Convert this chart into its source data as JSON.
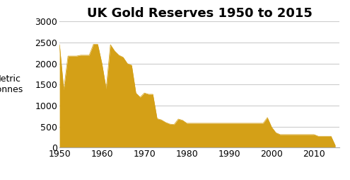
{
  "title": "UK Gold Reserves 1950 to 2015",
  "ylabel": "Metric\nTonnes",
  "fill_color": "#D4A017",
  "background_color": "#ffffff",
  "years": [
    1950,
    1951,
    1952,
    1953,
    1954,
    1955,
    1956,
    1957,
    1958,
    1959,
    1960,
    1961,
    1962,
    1963,
    1964,
    1965,
    1966,
    1967,
    1968,
    1969,
    1970,
    1971,
    1972,
    1973,
    1974,
    1975,
    1976,
    1977,
    1978,
    1979,
    1980,
    1981,
    1982,
    1983,
    1984,
    1985,
    1986,
    1987,
    1988,
    1989,
    1990,
    1991,
    1992,
    1993,
    1994,
    1995,
    1996,
    1997,
    1998,
    1999,
    2000,
    2001,
    2002,
    2003,
    2004,
    2005,
    2006,
    2007,
    2008,
    2009,
    2010,
    2011,
    2012,
    2013,
    2014,
    2015
  ],
  "values": [
    2450,
    1380,
    2180,
    2180,
    2180,
    2200,
    2200,
    2200,
    2460,
    2460,
    2000,
    1400,
    2450,
    2300,
    2200,
    2150,
    2000,
    1960,
    1300,
    1200,
    1300,
    1270,
    1270,
    690,
    660,
    600,
    560,
    550,
    680,
    650,
    580,
    580,
    580,
    580,
    580,
    580,
    580,
    580,
    580,
    580,
    580,
    580,
    580,
    580,
    580,
    580,
    580,
    580,
    580,
    715,
    487,
    355,
    310,
    310,
    310,
    310,
    310,
    310,
    310,
    310,
    310,
    270,
    270,
    270,
    270,
    50
  ],
  "ylim": [
    0,
    3000
  ],
  "yticks": [
    0,
    500,
    1000,
    1500,
    2000,
    2500,
    3000
  ],
  "xticks": [
    1950,
    1960,
    1970,
    1980,
    1990,
    2000,
    2010
  ],
  "grid_color": "#cccccc",
  "title_fontsize": 13,
  "tick_fontsize": 9,
  "ylabel_fontsize": 9
}
